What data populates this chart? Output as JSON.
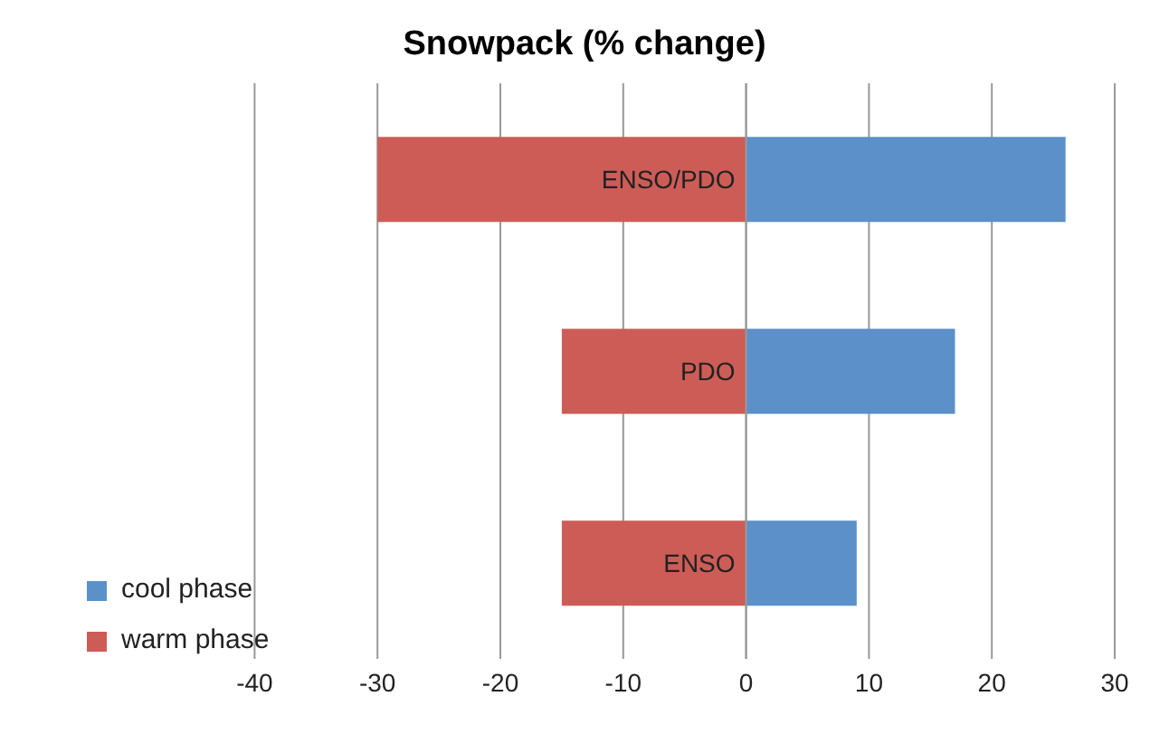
{
  "chart_data": {
    "type": "bar",
    "title": "Snowpack (% change)",
    "orientation": "horizontal",
    "stacked": true,
    "categories": [
      "ENSO/PDO",
      "PDO",
      "ENSO"
    ],
    "series": [
      {
        "name": "warm phase",
        "color": "#cd5c57",
        "values": [
          -30,
          -15,
          -15
        ]
      },
      {
        "name": "cool phase",
        "color": "#5b90c9",
        "values": [
          26,
          17,
          9
        ]
      }
    ],
    "xlim": [
      -40,
      30
    ],
    "xticks": [
      -40,
      -30,
      -20,
      -10,
      0,
      10,
      20,
      30
    ],
    "grid": "x",
    "legend": "bottom left"
  }
}
